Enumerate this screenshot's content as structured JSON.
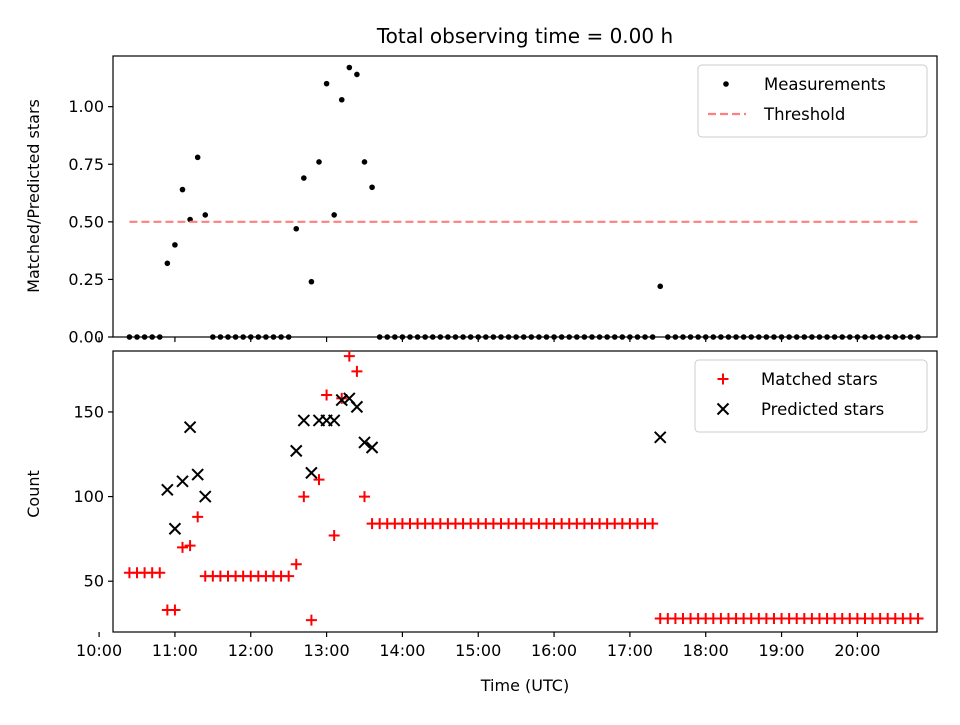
{
  "chart_data": [
    {
      "type": "scatter",
      "title": "Total observing time = 0.00 h",
      "xlabel": "",
      "ylabel": "Matched/Predicted stars",
      "xlim": [
        "10:11",
        "21:03"
      ],
      "ylim": [
        0,
        1.22
      ],
      "yticks": [
        0.0,
        0.25,
        0.5,
        0.75,
        1.0
      ],
      "ytick_labels": [
        "0.00",
        "0.25",
        "0.50",
        "0.75",
        "1.00"
      ],
      "xtick_labels_shown": false,
      "legend_position": "upper right",
      "series": [
        {
          "name": "Measurements",
          "marker": "dot",
          "color": "#000000",
          "points": [
            [
              "10:24",
              0
            ],
            [
              "10:30",
              0
            ],
            [
              "10:36",
              0
            ],
            [
              "10:42",
              0
            ],
            [
              "10:48",
              0
            ],
            [
              "10:54",
              0.32
            ],
            [
              "11:00",
              0.4
            ],
            [
              "11:06",
              0.64
            ],
            [
              "11:12",
              0.51
            ],
            [
              "11:18",
              0.78
            ],
            [
              "11:24",
              0.53
            ],
            [
              "11:30",
              0
            ],
            [
              "11:36",
              0
            ],
            [
              "11:42",
              0
            ],
            [
              "11:48",
              0
            ],
            [
              "11:54",
              0
            ],
            [
              "12:00",
              0
            ],
            [
              "12:06",
              0
            ],
            [
              "12:12",
              0
            ],
            [
              "12:18",
              0
            ],
            [
              "12:24",
              0
            ],
            [
              "12:30",
              0
            ],
            [
              "12:36",
              0.47
            ],
            [
              "12:42",
              0.69
            ],
            [
              "12:48",
              0.24
            ],
            [
              "12:54",
              0.76
            ],
            [
              "13:00",
              1.1
            ],
            [
              "13:06",
              0.53
            ],
            [
              "13:12",
              1.03
            ],
            [
              "13:18",
              1.17
            ],
            [
              "13:24",
              1.14
            ],
            [
              "13:30",
              0.76
            ],
            [
              "13:36",
              0.65
            ],
            [
              "13:42",
              0
            ],
            [
              "13:48",
              0
            ],
            [
              "13:54",
              0
            ],
            [
              "14:00",
              0
            ],
            [
              "14:06",
              0
            ],
            [
              "14:12",
              0
            ],
            [
              "14:18",
              0
            ],
            [
              "14:24",
              0
            ],
            [
              "14:30",
              0
            ],
            [
              "14:36",
              0
            ],
            [
              "14:42",
              0
            ],
            [
              "14:48",
              0
            ],
            [
              "14:54",
              0
            ],
            [
              "15:00",
              0
            ],
            [
              "15:06",
              0
            ],
            [
              "15:12",
              0
            ],
            [
              "15:18",
              0
            ],
            [
              "15:24",
              0
            ],
            [
              "15:30",
              0
            ],
            [
              "15:36",
              0
            ],
            [
              "15:42",
              0
            ],
            [
              "15:48",
              0
            ],
            [
              "15:54",
              0
            ],
            [
              "16:00",
              0
            ],
            [
              "16:06",
              0
            ],
            [
              "16:12",
              0
            ],
            [
              "16:18",
              0
            ],
            [
              "16:24",
              0
            ],
            [
              "16:30",
              0
            ],
            [
              "16:36",
              0
            ],
            [
              "16:42",
              0
            ],
            [
              "16:48",
              0
            ],
            [
              "16:54",
              0
            ],
            [
              "17:00",
              0
            ],
            [
              "17:06",
              0
            ],
            [
              "17:12",
              0
            ],
            [
              "17:18",
              0
            ],
            [
              "17:24",
              0.22
            ],
            [
              "17:30",
              0
            ],
            [
              "17:36",
              0
            ],
            [
              "17:42",
              0
            ],
            [
              "17:48",
              0
            ],
            [
              "17:54",
              0
            ],
            [
              "18:00",
              0
            ],
            [
              "18:06",
              0
            ],
            [
              "18:12",
              0
            ],
            [
              "18:18",
              0
            ],
            [
              "18:24",
              0
            ],
            [
              "18:30",
              0
            ],
            [
              "18:36",
              0
            ],
            [
              "18:42",
              0
            ],
            [
              "18:48",
              0
            ],
            [
              "18:54",
              0
            ],
            [
              "19:00",
              0
            ],
            [
              "19:06",
              0
            ],
            [
              "19:12",
              0
            ],
            [
              "19:18",
              0
            ],
            [
              "19:24",
              0
            ],
            [
              "19:30",
              0
            ],
            [
              "19:36",
              0
            ],
            [
              "19:42",
              0
            ],
            [
              "19:48",
              0
            ],
            [
              "19:54",
              0
            ],
            [
              "20:00",
              0
            ],
            [
              "20:06",
              0
            ],
            [
              "20:12",
              0
            ],
            [
              "20:18",
              0
            ],
            [
              "20:24",
              0
            ],
            [
              "20:30",
              0
            ],
            [
              "20:36",
              0
            ],
            [
              "20:42",
              0
            ],
            [
              "20:48",
              0
            ]
          ]
        },
        {
          "name": "Threshold",
          "style": "dashed-line",
          "color": "#ff7f7f",
          "points": [
            [
              "10:24",
              0.5
            ],
            [
              "20:48",
              0.5
            ]
          ]
        }
      ]
    },
    {
      "type": "scatter",
      "title": "",
      "xlabel": "Time (UTC)",
      "ylabel": "Count",
      "xlim": [
        "10:11",
        "21:03"
      ],
      "ylim": [
        20,
        186
      ],
      "yticks": [
        50,
        100,
        150
      ],
      "ytick_labels": [
        "50",
        "100",
        "150"
      ],
      "xticks": [
        "10:00",
        "11:00",
        "12:00",
        "13:00",
        "14:00",
        "15:00",
        "16:00",
        "17:00",
        "18:00",
        "19:00",
        "20:00"
      ],
      "legend_position": "upper right",
      "series": [
        {
          "name": "Matched stars",
          "marker": "plus",
          "color": "#ff0000",
          "points": [
            [
              "10:24",
              55
            ],
            [
              "10:30",
              55
            ],
            [
              "10:36",
              55
            ],
            [
              "10:42",
              55
            ],
            [
              "10:48",
              55
            ],
            [
              "10:54",
              33
            ],
            [
              "11:00",
              33
            ],
            [
              "11:06",
              70
            ],
            [
              "11:12",
              71
            ],
            [
              "11:18",
              88
            ],
            [
              "11:24",
              53
            ],
            [
              "11:30",
              53
            ],
            [
              "11:36",
              53
            ],
            [
              "11:42",
              53
            ],
            [
              "11:48",
              53
            ],
            [
              "11:54",
              53
            ],
            [
              "12:00",
              53
            ],
            [
              "12:06",
              53
            ],
            [
              "12:12",
              53
            ],
            [
              "12:18",
              53
            ],
            [
              "12:24",
              53
            ],
            [
              "12:30",
              53
            ],
            [
              "12:36",
              60
            ],
            [
              "12:42",
              100
            ],
            [
              "12:48",
              27
            ],
            [
              "12:54",
              110
            ],
            [
              "13:00",
              160
            ],
            [
              "13:06",
              77
            ],
            [
              "13:12",
              158
            ],
            [
              "13:18",
              183
            ],
            [
              "13:24",
              174
            ],
            [
              "13:30",
              100
            ],
            [
              "13:36",
              84
            ],
            [
              "13:42",
              84
            ],
            [
              "13:48",
              84
            ],
            [
              "13:54",
              84
            ],
            [
              "14:00",
              84
            ],
            [
              "14:06",
              84
            ],
            [
              "14:12",
              84
            ],
            [
              "14:18",
              84
            ],
            [
              "14:24",
              84
            ],
            [
              "14:30",
              84
            ],
            [
              "14:36",
              84
            ],
            [
              "14:42",
              84
            ],
            [
              "14:48",
              84
            ],
            [
              "14:54",
              84
            ],
            [
              "15:00",
              84
            ],
            [
              "15:06",
              84
            ],
            [
              "15:12",
              84
            ],
            [
              "15:18",
              84
            ],
            [
              "15:24",
              84
            ],
            [
              "15:30",
              84
            ],
            [
              "15:36",
              84
            ],
            [
              "15:42",
              84
            ],
            [
              "15:48",
              84
            ],
            [
              "15:54",
              84
            ],
            [
              "16:00",
              84
            ],
            [
              "16:06",
              84
            ],
            [
              "16:12",
              84
            ],
            [
              "16:18",
              84
            ],
            [
              "16:24",
              84
            ],
            [
              "16:30",
              84
            ],
            [
              "16:36",
              84
            ],
            [
              "16:42",
              84
            ],
            [
              "16:48",
              84
            ],
            [
              "16:54",
              84
            ],
            [
              "17:00",
              84
            ],
            [
              "17:06",
              84
            ],
            [
              "17:12",
              84
            ],
            [
              "17:18",
              84
            ],
            [
              "17:24",
              28
            ],
            [
              "17:30",
              28
            ],
            [
              "17:36",
              28
            ],
            [
              "17:42",
              28
            ],
            [
              "17:48",
              28
            ],
            [
              "17:54",
              28
            ],
            [
              "18:00",
              28
            ],
            [
              "18:06",
              28
            ],
            [
              "18:12",
              28
            ],
            [
              "18:18",
              28
            ],
            [
              "18:24",
              28
            ],
            [
              "18:30",
              28
            ],
            [
              "18:36",
              28
            ],
            [
              "18:42",
              28
            ],
            [
              "18:48",
              28
            ],
            [
              "18:54",
              28
            ],
            [
              "19:00",
              28
            ],
            [
              "19:06",
              28
            ],
            [
              "19:12",
              28
            ],
            [
              "19:18",
              28
            ],
            [
              "19:24",
              28
            ],
            [
              "19:30",
              28
            ],
            [
              "19:36",
              28
            ],
            [
              "19:42",
              28
            ],
            [
              "19:48",
              28
            ],
            [
              "19:54",
              28
            ],
            [
              "20:00",
              28
            ],
            [
              "20:06",
              28
            ],
            [
              "20:12",
              28
            ],
            [
              "20:18",
              28
            ],
            [
              "20:24",
              28
            ],
            [
              "20:30",
              28
            ],
            [
              "20:36",
              28
            ],
            [
              "20:42",
              28
            ],
            [
              "20:48",
              28
            ]
          ]
        },
        {
          "name": "Predicted stars",
          "marker": "x",
          "color": "#000000",
          "points": [
            [
              "10:54",
              104
            ],
            [
              "11:00",
              81
            ],
            [
              "11:06",
              109
            ],
            [
              "11:12",
              141
            ],
            [
              "11:18",
              113
            ],
            [
              "11:24",
              100
            ],
            [
              "12:36",
              127
            ],
            [
              "12:42",
              145
            ],
            [
              "12:48",
              114
            ],
            [
              "12:54",
              145
            ],
            [
              "13:00",
              145
            ],
            [
              "13:06",
              145
            ],
            [
              "13:12",
              157
            ],
            [
              "13:18",
              158
            ],
            [
              "13:24",
              153
            ],
            [
              "13:30",
              132
            ],
            [
              "13:36",
              129
            ],
            [
              "17:24",
              135
            ]
          ]
        }
      ]
    }
  ]
}
